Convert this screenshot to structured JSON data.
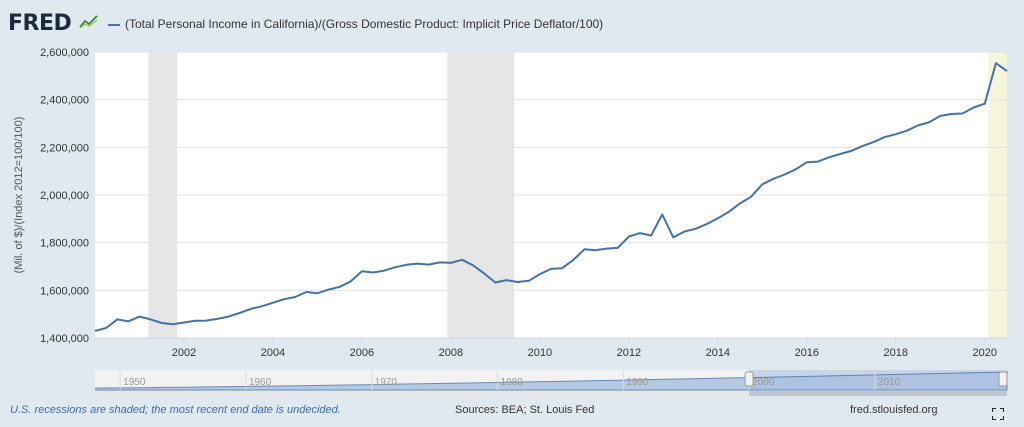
{
  "header": {
    "logo_text": "FRED",
    "series_title": "(Total Personal Income in California)/(Gross Domestic Product: Implicit Price Deflator/100)"
  },
  "footer": {
    "recession_note": "U.S. recessions are shaded; the most recent end date is undecided.",
    "sources": "Sources: BEA; St. Louis Fed",
    "link": "fred.stlouisfed.org"
  },
  "colors": {
    "line": "#4572a7",
    "recession": "#e6e6e6",
    "recession_current": "#f5f5dc",
    "background": "#e1e9f0"
  },
  "icons": {
    "logo_graph": "line-graph-icon",
    "fullscreen": "expand-icon"
  },
  "chart_data": {
    "type": "line",
    "title": "(Total Personal Income in California)/(Gross Domestic Product: Implicit Price Deflator/100)",
    "xlabel": "",
    "ylabel": "(Mil. of $)/(Index 2012=100/100)",
    "xlim": [
      2000.0,
      2020.5
    ],
    "ylim": [
      1400000,
      2600000
    ],
    "y_ticks": [
      {
        "value": 1400000,
        "label": "1,400,000"
      },
      {
        "value": 1600000,
        "label": "1,600,000"
      },
      {
        "value": 1800000,
        "label": "1,800,000"
      },
      {
        "value": 2000000,
        "label": "2,000,000"
      },
      {
        "value": 2200000,
        "label": "2,200,000"
      },
      {
        "value": 2400000,
        "label": "2,400,000"
      },
      {
        "value": 2600000,
        "label": "2,600,000"
      }
    ],
    "x_ticks": [
      {
        "value": 2002,
        "label": "2002"
      },
      {
        "value": 2004,
        "label": "2004"
      },
      {
        "value": 2006,
        "label": "2006"
      },
      {
        "value": 2008,
        "label": "2008"
      },
      {
        "value": 2010,
        "label": "2010"
      },
      {
        "value": 2012,
        "label": "2012"
      },
      {
        "value": 2014,
        "label": "2014"
      },
      {
        "value": 2016,
        "label": "2016"
      },
      {
        "value": 2018,
        "label": "2018"
      },
      {
        "value": 2020,
        "label": "2020"
      }
    ],
    "grid": true,
    "recessions": [
      {
        "start": 2001.2,
        "end": 2001.85
      },
      {
        "start": 2007.92,
        "end": 2009.42
      },
      {
        "start": 2020.08,
        "end": 2020.5,
        "current": true
      }
    ],
    "navigator": {
      "range": [
        1948,
        2020.5
      ],
      "selected": [
        2000.0,
        2020.5
      ],
      "labels": [
        "1950",
        "1960",
        "1970",
        "1980",
        "1990",
        "2000",
        "2010"
      ],
      "label_values": [
        1950,
        1960,
        1970,
        1980,
        1990,
        2000,
        2010
      ]
    },
    "series": [
      {
        "x": [
          2000.0,
          2000.25,
          2000.5,
          2000.75,
          2001.0,
          2001.25,
          2001.5,
          2001.75,
          2002.0,
          2002.25,
          2002.5,
          2002.75,
          2003.0,
          2003.25,
          2003.5,
          2003.75,
          2004.0,
          2004.25,
          2004.5,
          2004.75,
          2005.0,
          2005.25,
          2005.5,
          2005.75,
          2006.0,
          2006.25,
          2006.5,
          2006.75,
          2007.0,
          2007.25,
          2007.5,
          2007.75,
          2008.0,
          2008.25,
          2008.5,
          2008.75,
          2009.0,
          2009.25,
          2009.5,
          2009.75,
          2010.0,
          2010.25,
          2010.5,
          2010.75,
          2011.0,
          2011.25,
          2011.5,
          2011.75,
          2012.0,
          2012.25,
          2012.5,
          2012.75,
          2013.0,
          2013.25,
          2013.5,
          2013.75,
          2014.0,
          2014.25,
          2014.5,
          2014.75,
          2015.0,
          2015.25,
          2015.5,
          2015.75,
          2016.0,
          2016.25,
          2016.5,
          2016.75,
          2017.0,
          2017.25,
          2017.5,
          2017.75,
          2018.0,
          2018.25,
          2018.5,
          2018.75,
          2019.0,
          2019.25,
          2019.5,
          2019.75,
          2020.0,
          2020.25,
          2020.5
        ],
        "values": [
          1430000,
          1442000,
          1478000,
          1470000,
          1490000,
          1478000,
          1463000,
          1458000,
          1465000,
          1472000,
          1473000,
          1480000,
          1490000,
          1505000,
          1522000,
          1533000,
          1548000,
          1563000,
          1572000,
          1593000,
          1588000,
          1603000,
          1615000,
          1638000,
          1680000,
          1675000,
          1683000,
          1697000,
          1707000,
          1712000,
          1708000,
          1717000,
          1715000,
          1728000,
          1705000,
          1670000,
          1633000,
          1643000,
          1635000,
          1640000,
          1668000,
          1690000,
          1693000,
          1727000,
          1772000,
          1768000,
          1775000,
          1778000,
          1826000,
          1840000,
          1830000,
          1918000,
          1822000,
          1847000,
          1858000,
          1878000,
          1902000,
          1930000,
          1965000,
          1993000,
          2045000,
          2068000,
          2086000,
          2108000,
          2137000,
          2140000,
          2158000,
          2172000,
          2185000,
          2205000,
          2222000,
          2243000,
          2255000,
          2270000,
          2292000,
          2305000,
          2332000,
          2340000,
          2342000,
          2367000,
          2383000,
          2553000,
          2520000
        ]
      }
    ]
  }
}
